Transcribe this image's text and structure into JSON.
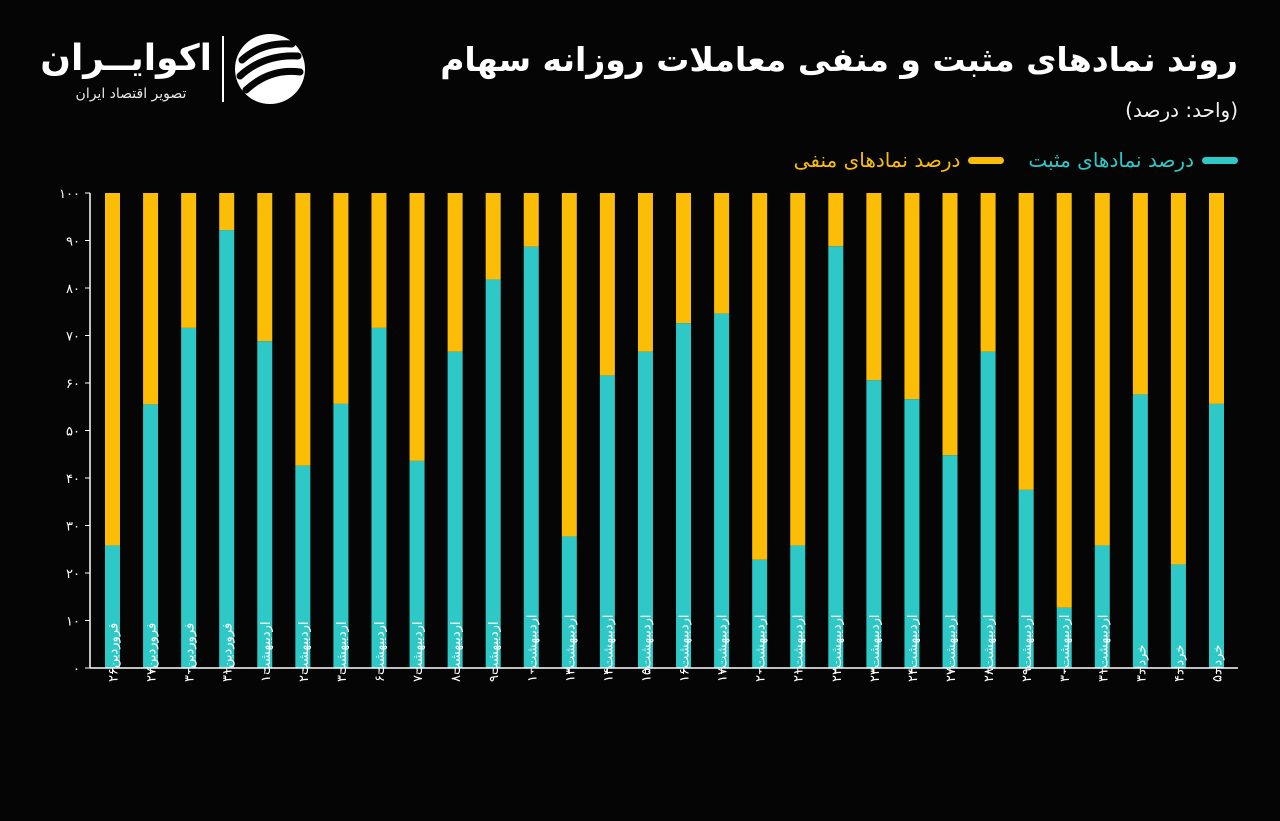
{
  "header": {
    "title": "روند نمادهای مثبت و منفی معاملات روزانه سهام",
    "unit": "(واحد: درصد)"
  },
  "logo": {
    "name": "اکوایــران",
    "subtitle": "تصویر اقتصاد ایران",
    "icon": "ekoiran-logo-mark"
  },
  "legend": {
    "positive": "درصد نمادهای مثبت",
    "negative": "درصد نمادهای منفی"
  },
  "colors": {
    "positive": "#2ec9c6",
    "negative": "#fbbd06",
    "axis": "#ffffff",
    "background": "#050505"
  },
  "chart_data": {
    "type": "bar",
    "stacked": true,
    "ylim": [
      0,
      100
    ],
    "yticks": [
      "۰",
      "۱۰",
      "۲۰",
      "۳۰",
      "۴۰",
      "۵۰",
      "۶۰",
      "۷۰",
      "۸۰",
      "۹۰",
      "۱۰۰"
    ],
    "categories": [
      "فروردین۲۶",
      "فروردین۲۷",
      "فروردین۳۰",
      "فروردین۳۱",
      "اردیبهشت۱",
      "اردیبهشت۲",
      "اردیبهشت۳",
      "اردیبهشت۶",
      "اردیبهشت۷",
      "اردیبهشت۸",
      "اردیبهشت۹",
      "اردیبهشت۱۰",
      "اردیبهشت۱۳",
      "اردیبهشت۱۴",
      "اردیبهشت۱۵",
      "اردیبهشت۱۶",
      "اردیبهشت۱۷",
      "اردیبهشت۲۰",
      "اردیبهشت۲۱",
      "اردیبهشت۲۲",
      "اردیبهشت۲۳",
      "اردیبهشت۲۴",
      "اردیبهشت۲۷",
      "اردیبهشت۲۸",
      "اردیبهشت۲۹",
      "اردیبهشت۳۰",
      "اردیبهشت۳۱",
      "خرداد۳",
      "خرداد۴",
      "خرداد۵"
    ],
    "series": [
      {
        "name": "درصد نمادهای مثبت",
        "values": [
          25.8,
          55.5,
          71.6,
          92.2,
          68.8,
          42.6,
          55.6,
          71.6,
          43.6,
          66.6,
          81.8,
          88.7,
          27.7,
          61.6,
          66.6,
          72.6,
          74.6,
          22.8,
          25.8,
          88.8,
          60.6,
          56.6,
          44.8,
          66.6,
          37.5,
          12.7,
          25.8,
          57.6,
          21.8,
          55.6
        ]
      },
      {
        "name": "درصد نمادهای منفی",
        "values": [
          74.2,
          44.5,
          28.4,
          7.8,
          31.2,
          57.4,
          44.4,
          28.4,
          56.4,
          33.4,
          18.2,
          11.3,
          72.3,
          38.4,
          33.4,
          27.4,
          25.4,
          77.2,
          74.2,
          11.2,
          39.4,
          43.4,
          55.2,
          33.4,
          62.5,
          87.3,
          74.2,
          42.4,
          78.2,
          44.4
        ]
      }
    ]
  }
}
